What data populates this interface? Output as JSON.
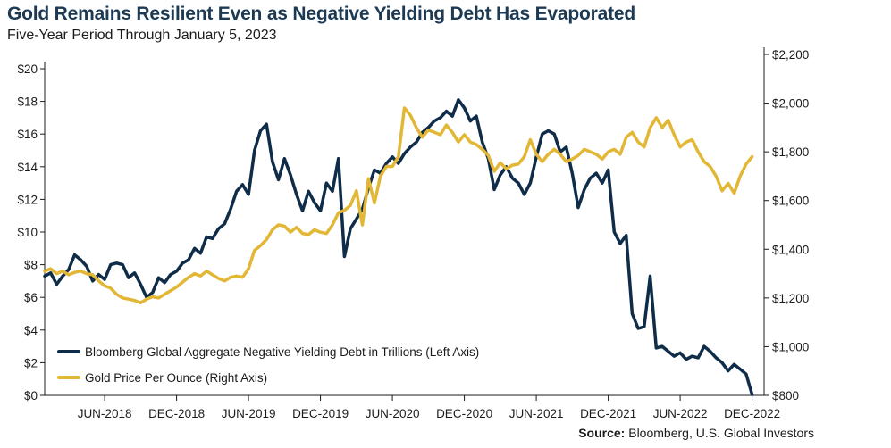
{
  "title": "Gold Remains Resilient Even as Negative Yielding Debt Has Evaporated",
  "subtitle": "Five-Year Period Through January 5, 2023",
  "source_label": "Source:",
  "source_text": "Bloomberg, U.S. Global Investors",
  "colors": {
    "debt": "#0f2c48",
    "gold": "#e3b736",
    "axis": "#1b1b1b"
  },
  "chart_data": {
    "type": "line",
    "title": "Gold Remains Resilient Even as Negative Yielding Debt Has Evaporated",
    "subtitle": "Five-Year Period Through January 5, 2023",
    "x_range_months": [
      0,
      60
    ],
    "x_ticks": [
      {
        "m": 5,
        "label": "JUN-2018"
      },
      {
        "m": 11,
        "label": "DEC-2018"
      },
      {
        "m": 17,
        "label": "JUN-2019"
      },
      {
        "m": 23,
        "label": "DEC-2019"
      },
      {
        "m": 29,
        "label": "JUN-2020"
      },
      {
        "m": 35,
        "label": "DEC-2020"
      },
      {
        "m": 41,
        "label": "JUN-2021"
      },
      {
        "m": 47,
        "label": "DEC-2021"
      },
      {
        "m": 53,
        "label": "JUN-2022"
      },
      {
        "m": 59,
        "label": "DEC-2022"
      }
    ],
    "y_left": {
      "min": 0,
      "max": 20,
      "ticks": [
        {
          "v": 0,
          "label": "$0"
        },
        {
          "v": 2,
          "label": "$2"
        },
        {
          "v": 4,
          "label": "$4"
        },
        {
          "v": 6,
          "label": "$6"
        },
        {
          "v": 8,
          "label": "$8"
        },
        {
          "v": 10,
          "label": "$10"
        },
        {
          "v": 12,
          "label": "$12"
        },
        {
          "v": 14,
          "label": "$14"
        },
        {
          "v": 16,
          "label": "$16"
        },
        {
          "v": 18,
          "label": "$18"
        },
        {
          "v": 20,
          "label": "$20"
        }
      ]
    },
    "y_right": {
      "min": 800,
      "max": 2200,
      "ticks": [
        {
          "v": 800,
          "label": "$800"
        },
        {
          "v": 1000,
          "label": "$1,000"
        },
        {
          "v": 1200,
          "label": "$1,200"
        },
        {
          "v": 1400,
          "label": "$1,400"
        },
        {
          "v": 1600,
          "label": "$1,600"
        },
        {
          "v": 1800,
          "label": "$1,800"
        },
        {
          "v": 2000,
          "label": "$2,000"
        },
        {
          "v": 2200,
          "label": "$2,200"
        }
      ]
    },
    "legend_position": "bottom-left",
    "series": [
      {
        "name": "Bloomberg Global Aggregate Negative Yielding Debt in Trillions (Left Axis)",
        "axis": "left",
        "color": "#0f2c48",
        "points": [
          [
            0,
            7.3
          ],
          [
            0.5,
            7.5
          ],
          [
            1,
            6.8
          ],
          [
            1.5,
            7.3
          ],
          [
            2,
            7.7
          ],
          [
            2.5,
            8.6
          ],
          [
            3,
            8.3
          ],
          [
            3.5,
            7.9
          ],
          [
            4,
            7.0
          ],
          [
            4.5,
            7.4
          ],
          [
            5,
            7.1
          ],
          [
            5.5,
            8.0
          ],
          [
            6,
            8.1
          ],
          [
            6.5,
            8.0
          ],
          [
            7,
            7.2
          ],
          [
            7.5,
            7.5
          ],
          [
            8,
            6.8
          ],
          [
            8.5,
            6.0
          ],
          [
            9,
            6.3
          ],
          [
            9.5,
            7.2
          ],
          [
            10,
            6.9
          ],
          [
            10.5,
            7.4
          ],
          [
            11,
            7.6
          ],
          [
            11.5,
            8.1
          ],
          [
            12,
            8.3
          ],
          [
            12.5,
            9.0
          ],
          [
            13,
            8.7
          ],
          [
            13.5,
            9.7
          ],
          [
            14,
            9.6
          ],
          [
            14.5,
            10.2
          ],
          [
            15,
            10.5
          ],
          [
            15.5,
            11.4
          ],
          [
            16,
            12.5
          ],
          [
            16.5,
            12.9
          ],
          [
            17,
            12.3
          ],
          [
            17.5,
            15.0
          ],
          [
            18,
            16.2
          ],
          [
            18.5,
            16.6
          ],
          [
            19,
            14.3
          ],
          [
            19.5,
            13.2
          ],
          [
            20,
            14.5
          ],
          [
            20.5,
            13.5
          ],
          [
            21,
            12.3
          ],
          [
            21.5,
            11.3
          ],
          [
            22,
            12.5
          ],
          [
            22.5,
            11.8
          ],
          [
            23,
            11.3
          ],
          [
            23.5,
            13.0
          ],
          [
            24,
            12.5
          ],
          [
            24.5,
            14.5
          ],
          [
            25,
            8.5
          ],
          [
            25.5,
            10.2
          ],
          [
            26,
            10.8
          ],
          [
            26.5,
            11.4
          ],
          [
            27,
            12.7
          ],
          [
            27.5,
            13.8
          ],
          [
            28,
            13.6
          ],
          [
            28.5,
            14.2
          ],
          [
            29,
            14.6
          ],
          [
            29.5,
            14.2
          ],
          [
            30,
            14.8
          ],
          [
            30.5,
            15.2
          ],
          [
            31,
            15.5
          ],
          [
            31.5,
            16.1
          ],
          [
            32,
            16.4
          ],
          [
            32.5,
            16.8
          ],
          [
            33,
            17.0
          ],
          [
            33.5,
            17.4
          ],
          [
            34,
            17.1
          ],
          [
            34.5,
            18.1
          ],
          [
            35,
            17.6
          ],
          [
            35.5,
            16.8
          ],
          [
            36,
            17.1
          ],
          [
            36.5,
            15.5
          ],
          [
            37,
            14.5
          ],
          [
            37.5,
            12.6
          ],
          [
            38,
            13.5
          ],
          [
            38.5,
            14.0
          ],
          [
            39,
            13.3
          ],
          [
            39.5,
            13.0
          ],
          [
            40,
            12.3
          ],
          [
            40.5,
            13.0
          ],
          [
            41,
            14.6
          ],
          [
            41.5,
            16.0
          ],
          [
            42,
            16.2
          ],
          [
            42.5,
            16.0
          ],
          [
            43,
            14.9
          ],
          [
            43.5,
            15.2
          ],
          [
            44,
            13.6
          ],
          [
            44.5,
            11.5
          ],
          [
            45,
            12.6
          ],
          [
            45.5,
            13.3
          ],
          [
            46,
            13.6
          ],
          [
            46.5,
            13.0
          ],
          [
            47,
            13.8
          ],
          [
            47.5,
            10.0
          ],
          [
            48,
            9.3
          ],
          [
            48.5,
            9.8
          ],
          [
            49,
            5.0
          ],
          [
            49.5,
            4.1
          ],
          [
            50,
            4.2
          ],
          [
            50.5,
            7.3
          ],
          [
            51,
            2.9
          ],
          [
            51.5,
            3.0
          ],
          [
            52,
            2.7
          ],
          [
            52.5,
            2.4
          ],
          [
            53,
            2.6
          ],
          [
            53.5,
            2.2
          ],
          [
            54,
            2.4
          ],
          [
            54.5,
            2.3
          ],
          [
            55,
            3.0
          ],
          [
            55.5,
            2.7
          ],
          [
            56,
            2.3
          ],
          [
            56.5,
            2.0
          ],
          [
            57,
            1.5
          ],
          [
            57.5,
            1.9
          ],
          [
            58,
            1.6
          ],
          [
            58.5,
            1.3
          ],
          [
            59,
            0.05
          ]
        ]
      },
      {
        "name": "Gold Price Per Ounce (Right Axis)",
        "axis": "right",
        "color": "#e3b736",
        "points": [
          [
            0,
            1310
          ],
          [
            0.5,
            1320
          ],
          [
            1,
            1300
          ],
          [
            1.5,
            1310
          ],
          [
            2,
            1295
          ],
          [
            2.5,
            1305
          ],
          [
            3,
            1310
          ],
          [
            3.5,
            1300
          ],
          [
            4,
            1295
          ],
          [
            4.5,
            1270
          ],
          [
            5,
            1250
          ],
          [
            5.5,
            1240
          ],
          [
            6,
            1215
          ],
          [
            6.5,
            1200
          ],
          [
            7,
            1195
          ],
          [
            7.5,
            1190
          ],
          [
            8,
            1180
          ],
          [
            8.5,
            1195
          ],
          [
            9,
            1205
          ],
          [
            9.5,
            1200
          ],
          [
            10,
            1215
          ],
          [
            10.5,
            1230
          ],
          [
            11,
            1245
          ],
          [
            11.5,
            1265
          ],
          [
            12,
            1285
          ],
          [
            12.5,
            1300
          ],
          [
            13,
            1290
          ],
          [
            13.5,
            1310
          ],
          [
            14,
            1295
          ],
          [
            14.5,
            1280
          ],
          [
            15,
            1270
          ],
          [
            15.5,
            1285
          ],
          [
            16,
            1290
          ],
          [
            16.5,
            1285
          ],
          [
            17,
            1320
          ],
          [
            17.5,
            1395
          ],
          [
            18,
            1415
          ],
          [
            18.5,
            1440
          ],
          [
            19,
            1480
          ],
          [
            19.5,
            1500
          ],
          [
            20,
            1495
          ],
          [
            20.5,
            1470
          ],
          [
            21,
            1490
          ],
          [
            21.5,
            1465
          ],
          [
            22,
            1460
          ],
          [
            22.5,
            1480
          ],
          [
            23,
            1470
          ],
          [
            23.5,
            1465
          ],
          [
            24,
            1500
          ],
          [
            24.5,
            1550
          ],
          [
            25,
            1560
          ],
          [
            25.5,
            1580
          ],
          [
            26,
            1640
          ],
          [
            26.5,
            1500
          ],
          [
            27,
            1690
          ],
          [
            27.5,
            1590
          ],
          [
            28,
            1700
          ],
          [
            28.5,
            1740
          ],
          [
            29,
            1740
          ],
          [
            29.5,
            1780
          ],
          [
            30,
            1980
          ],
          [
            30.5,
            1950
          ],
          [
            31,
            1900
          ],
          [
            31.5,
            1860
          ],
          [
            32,
            1890
          ],
          [
            32.5,
            1880
          ],
          [
            33,
            1870
          ],
          [
            33.5,
            1910
          ],
          [
            34,
            1880
          ],
          [
            34.5,
            1840
          ],
          [
            35,
            1870
          ],
          [
            35.5,
            1840
          ],
          [
            36,
            1830
          ],
          [
            36.5,
            1810
          ],
          [
            37,
            1785
          ],
          [
            37.5,
            1720
          ],
          [
            38,
            1755
          ],
          [
            38.5,
            1730
          ],
          [
            39,
            1745
          ],
          [
            39.5,
            1750
          ],
          [
            40,
            1780
          ],
          [
            40.5,
            1850
          ],
          [
            41,
            1790
          ],
          [
            41.5,
            1760
          ],
          [
            42,
            1790
          ],
          [
            42.5,
            1810
          ],
          [
            43,
            1790
          ],
          [
            43.5,
            1760
          ],
          [
            44,
            1770
          ],
          [
            44.5,
            1785
          ],
          [
            45,
            1810
          ],
          [
            45.5,
            1800
          ],
          [
            46,
            1790
          ],
          [
            46.5,
            1770
          ],
          [
            47,
            1800
          ],
          [
            47.5,
            1810
          ],
          [
            48,
            1790
          ],
          [
            48.5,
            1860
          ],
          [
            49,
            1880
          ],
          [
            49.5,
            1840
          ],
          [
            50,
            1820
          ],
          [
            50.5,
            1900
          ],
          [
            51,
            1940
          ],
          [
            51.5,
            1900
          ],
          [
            52,
            1930
          ],
          [
            52.5,
            1870
          ],
          [
            53,
            1820
          ],
          [
            53.5,
            1840
          ],
          [
            54,
            1850
          ],
          [
            54.5,
            1800
          ],
          [
            55,
            1760
          ],
          [
            55.5,
            1740
          ],
          [
            56,
            1700
          ],
          [
            56.5,
            1640
          ],
          [
            57,
            1670
          ],
          [
            57.5,
            1630
          ],
          [
            58,
            1700
          ],
          [
            58.5,
            1750
          ],
          [
            59,
            1780
          ]
        ]
      }
    ]
  }
}
